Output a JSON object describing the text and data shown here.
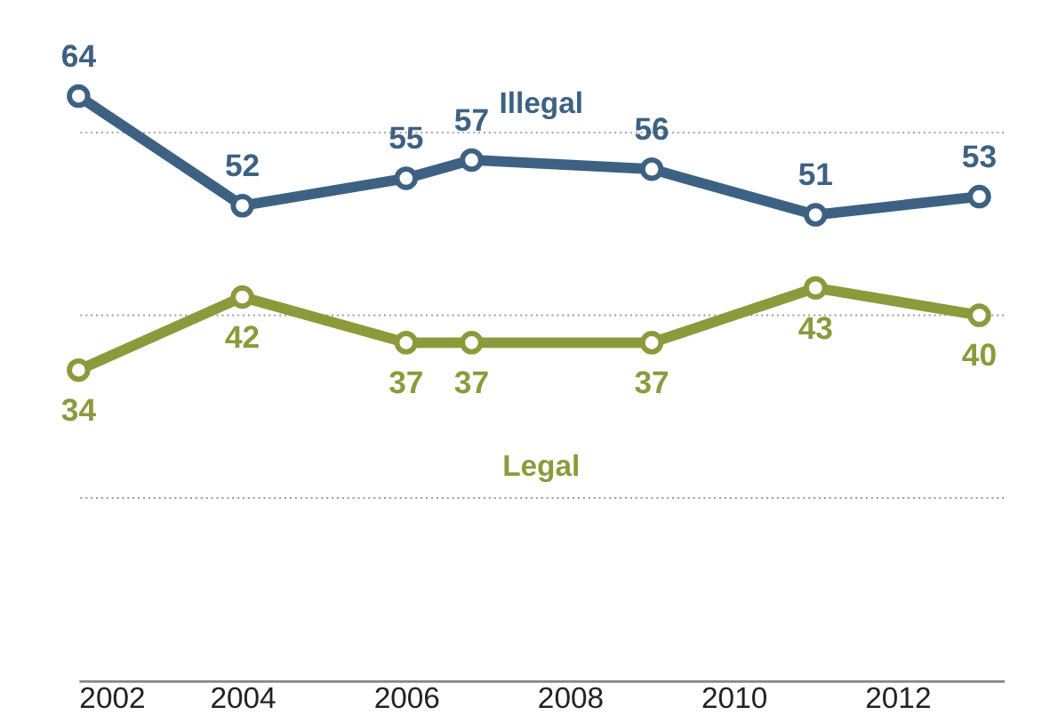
{
  "chart_data": {
    "type": "line",
    "x": [
      2002,
      2004,
      2006,
      2006.8,
      2009,
      2011,
      2013
    ],
    "series": [
      {
        "name": "Illegal",
        "color": "#3d6182",
        "values": [
          64,
          52,
          55,
          57,
          56,
          51,
          53
        ]
      },
      {
        "name": "Legal",
        "color": "#8c9a3c",
        "values": [
          34,
          42,
          37,
          37,
          37,
          43,
          40
        ]
      }
    ],
    "xlim": [
      2002,
      2013.3
    ],
    "xticks": [
      2002,
      2004,
      2006,
      2008,
      2010,
      2012
    ],
    "ref_lines": [
      {
        "axis": "y",
        "value": 20,
        "color": "#999999",
        "line_style": "dotted"
      },
      {
        "axis": "y",
        "value": 40,
        "color": "#999999",
        "line_style": "dotted"
      },
      {
        "axis": "y",
        "value": 60,
        "color": "#999999",
        "line_style": "dotted"
      }
    ],
    "tick_labels": "x",
    "data_labels": true,
    "marker": "circle",
    "line_style": "solid"
  }
}
